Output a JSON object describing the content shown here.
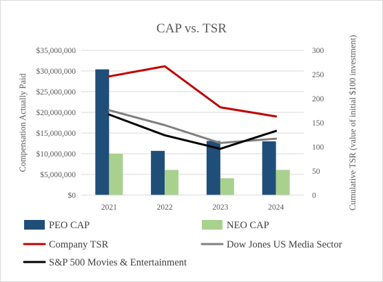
{
  "chart_data": {
    "type": "bar",
    "title": "CAP vs. TSR",
    "categories": [
      "2021",
      "2022",
      "2023",
      "2024"
    ],
    "y_left": {
      "label": "Compensation Actually Paid",
      "range": [
        0,
        35000000
      ],
      "ticks": [
        "$0",
        "$5,000,000",
        "$10,000,000",
        "$15,000,000",
        "$20,000,000",
        "$25,000,000",
        "$30,000,000",
        "$35,000,000"
      ]
    },
    "y_right": {
      "label": "Cumulative TSR (value of initial $100 investment)",
      "range": [
        0,
        300
      ],
      "ticks": [
        "0",
        "50",
        "100",
        "150",
        "200",
        "250",
        "300"
      ]
    },
    "grid": true,
    "legend_position": "bottom",
    "bar_series": [
      {
        "name": "PEO CAP",
        "color": "#1f4e79",
        "values": [
          30400000,
          10700000,
          13100000,
          13000000
        ]
      },
      {
        "name": "NEO CAP",
        "color": "#a9d18e",
        "values": [
          10000000,
          6100000,
          4100000,
          6100000
        ]
      }
    ],
    "line_series": [
      {
        "name": "Company TSR",
        "color": "#c00000",
        "values": [
          246,
          267,
          182,
          163
        ]
      },
      {
        "name": "Dow Jones US Media Sector",
        "color": "#808080",
        "values": [
          176,
          145,
          108,
          117
        ]
      },
      {
        "name": "S&P 500 Movies & Entertainment",
        "color": "#000000",
        "values": [
          167,
          124,
          96,
          133
        ]
      }
    ]
  }
}
